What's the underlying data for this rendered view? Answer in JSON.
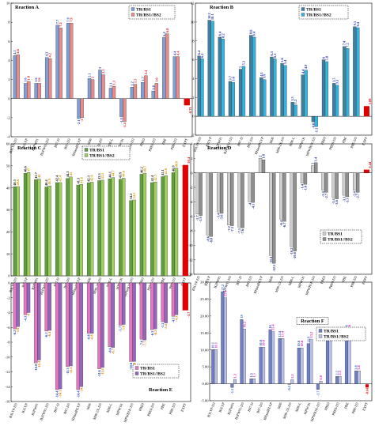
{
  "chart_data": [
    {
      "type": "bar",
      "title": "Reaction A",
      "categories": [
        "B3LYP-D3",
        "B3LYP",
        "B2PW91",
        "B2PW91-D3",
        "B97-D",
        "B97-D3",
        "BHandHLYP",
        "M06",
        "M06-2X-D3",
        "M06-L",
        "MPW1K",
        "MPWB1K-D3",
        "PBE0",
        "PBE0-D3",
        "PBE",
        "PBE-D3",
        "EXPT"
      ],
      "series": [
        {
          "name": "TR/BS1",
          "values": [
            4.5,
            1.6,
            1.6,
            4.3,
            7.7,
            7.9,
            -2.1,
            2.1,
            3.0,
            1.1,
            -1.9,
            1.2,
            1.7,
            0.8,
            6.4,
            4.4,
            null
          ]
        },
        {
          "name": "TR/BS1//BS2",
          "values": [
            4.6,
            1.8,
            1.6,
            4.2,
            7.4,
            7.9,
            -2.0,
            2.0,
            2.5,
            1.3,
            -2.4,
            1.5,
            2.4,
            1.6,
            6.8,
            4.4,
            null
          ]
        }
      ],
      "expt": -0.71,
      "expt_label": "-0.71",
      "legend_position": "top-right",
      "ylim": [
        -4,
        10
      ],
      "yticks": [
        -4,
        -2,
        0,
        2,
        4,
        6,
        8,
        10
      ],
      "colors": {
        "TR/BS1": "#7f9fd6",
        "TR/BS1//BS2": "#e88b8b",
        "labels1": "#2f46c8",
        "labels2": "#e02020",
        "expt": "#e00000"
      }
    },
    {
      "type": "bar",
      "title": "Reaction B",
      "categories": [
        "B3LYP-D3",
        "B3LYP",
        "B2PW91",
        "B2PW91-D3",
        "B97-D",
        "B97-D3",
        "BHandHLYP",
        "M06",
        "M06-2X-D3",
        "M06-L",
        "MPW1K",
        "MPWB1K-D3",
        "PBE0",
        "PBE0-D3",
        "PBE",
        "PBE-D3",
        "EXPT"
      ],
      "series": [
        {
          "name": "TR/BS1",
          "values": [
            6.4,
            10.2,
            8.4,
            3.7,
            5.0,
            8.6,
            4.1,
            6.3,
            5.6,
            1.5,
            4.4,
            -0.6,
            6.0,
            3.5,
            7.4,
            9.5,
            null
          ]
        },
        {
          "name": "TR/BS1//BS2",
          "values": [
            6.1,
            10.1,
            8.2,
            3.6,
            5.3,
            8.4,
            3.9,
            6.1,
            5.4,
            1.2,
            4.9,
            -1.1,
            5.8,
            3.3,
            7.2,
            9.4,
            null
          ]
        }
      ],
      "expt": 1.08,
      "expt_label": "1.08",
      "legend_position": "top-right",
      "ylim": [
        -2,
        12
      ],
      "yticks": [
        -2,
        0,
        2,
        4,
        6,
        8,
        10,
        12
      ],
      "colors": {
        "TR/BS1": "#3f7f9f",
        "TR/BS1//BS2": "#35b3de",
        "labels1": "#1f2fb0",
        "labels2": "#1f2fb0",
        "expt": "#e00000"
      }
    },
    {
      "type": "bar",
      "title": "Reaction C",
      "categories": [
        "B3LYP-D3",
        "B3LYP",
        "B2PW91",
        "B2PW91-D3",
        "B97-D",
        "B97-D3",
        "BHandHLYP",
        "M06",
        "M06-2X-D3",
        "M06-L",
        "MPW1K",
        "MPWB1K-D3",
        "PBE0",
        "PBE0-D3",
        "PBE",
        "PBE-D3",
        "EXPT"
      ],
      "series": [
        {
          "name": "TR/BS1",
          "values": [
            40.5,
            46.6,
            43.7,
            40.4,
            42.4,
            44.3,
            41.3,
            42.3,
            43.3,
            44.1,
            43.9,
            34.2,
            46.2,
            42.4,
            45.1,
            46.9,
            null
          ]
        },
        {
          "name": "TR/BS1//BS2",
          "values": [
            40.6,
            47.0,
            44.0,
            40.9,
            42.4,
            45.0,
            41.6,
            42.6,
            43.5,
            44.7,
            44.4,
            34.5,
            46.7,
            42.7,
            45.6,
            48.9,
            null
          ]
        }
      ],
      "expt": 50.4,
      "expt_label": "50.4",
      "legend_position": "top-center",
      "ylim": [
        0,
        60
      ],
      "yticks": [
        0,
        10,
        20,
        30,
        40,
        50,
        60
      ],
      "colors": {
        "TR/BS1": "#5f9f3f",
        "TR/BS1//BS2": "#9fcf5f",
        "labels1": "#1f1f1f",
        "labels2": "#d49b00",
        "expt": "#e00000"
      }
    },
    {
      "type": "bar",
      "title": "Reaction D",
      "categories": [
        "B3LYP-D3",
        "B3LYP",
        "B2PW91",
        "B2PW91-D3",
        "B97-D",
        "B97-D3",
        "BHandHLYP",
        "M06",
        "M06-2X-D3",
        "M06-L",
        "MPW1K",
        "MPWB1K-D3",
        "PBE0",
        "PBE0-D3",
        "PBE",
        "PBE-D3",
        "EXPT"
      ],
      "series": [
        {
          "name": "TR/BS1",
          "values": [
            -5.7,
            -8.6,
            -5.4,
            -7.2,
            -7.5,
            -4.0,
            2.0,
            -11.4,
            -6.4,
            -10.2,
            -1.4,
            1.0,
            -2.4,
            -3.4,
            -3.1,
            -2.4,
            null
          ]
        },
        {
          "name": "TR/BS1//BS2",
          "values": [
            -5.9,
            -8.8,
            -5.6,
            -7.3,
            -7.6,
            -4.1,
            1.8,
            -12.5,
            -6.7,
            -10.8,
            -1.6,
            1.4,
            -2.7,
            -3.6,
            -3.3,
            -2.7,
            null
          ]
        }
      ],
      "expt": 0.44,
      "expt_label": "0.44",
      "legend_position": "bottom-right",
      "ylim": [
        -14,
        4
      ],
      "yticks": [
        -14,
        -12,
        -10,
        -8,
        -6,
        -4,
        -2,
        0,
        2,
        4
      ],
      "colors": {
        "TR/BS1": "#cfcfcf",
        "TR/BS1//BS2": "#8f8f8f",
        "labels1": "#1f2f8f",
        "labels2": "#1f2f8f",
        "expt": "#e00000"
      }
    },
    {
      "type": "bar",
      "title": "Reaction E",
      "categories": [
        "B3LYP-D3",
        "B3LYP",
        "B2PW91",
        "B2PW91-D3",
        "B97-D",
        "B97-D3",
        "BHandHLYP",
        "M06",
        "M06-2X-D3",
        "M06-L",
        "MPW1K",
        "MPWB1K-D3",
        "PBE0",
        "PBE0-D3",
        "PBE",
        "PBE-D3",
        "EXPT"
      ],
      "series": [
        {
          "name": "TR/BS1",
          "values": [
            -6.2,
            -4.3,
            -10.8,
            -6.5,
            -14.4,
            -11.3,
            -14.4,
            -6.8,
            -11.6,
            -8.6,
            -5.7,
            -10.6,
            -7.6,
            -6.3,
            -5.2,
            -4.5,
            null
          ]
        },
        {
          "name": "TR/BS1//BS2",
          "values": [
            -5.9,
            -4.0,
            -10.4,
            -6.4,
            -14.3,
            -11.2,
            -14.0,
            -6.8,
            -11.4,
            -8.7,
            -5.6,
            -10.6,
            -7.7,
            -6.2,
            -5.4,
            -4.3,
            null
          ]
        }
      ],
      "expt": -3.7,
      "expt_label": "-3.7",
      "legend_position": "bottom-right",
      "ylim": [
        -16,
        0
      ],
      "yticks": [
        -16,
        -14,
        -12,
        -10,
        -8,
        -6,
        -4,
        -2,
        0
      ],
      "colors": {
        "TR/BS1": "#e377c2",
        "TR/BS1//BS2": "#9467bd",
        "labels1": "#1f3fbf",
        "labels2": "#e08000",
        "expt": "#e00000"
      }
    },
    {
      "type": "bar",
      "title": "Reaction F",
      "categories": [
        "B3LYP-D3",
        "B3LYP",
        "B2PW91",
        "B2PW91-D3",
        "B97-D",
        "B97-D3",
        "BHandHLYP",
        "M06",
        "M06-2X-D3",
        "M06-L",
        "MPW1K",
        "MPWB1K-D3",
        "PBE0",
        "PBE0-D3",
        "PBE",
        "PBE-D3",
        "EXPT"
      ],
      "series": [
        {
          "name": "TR/BS1",
          "values": [
            10.1,
            27.2,
            -1.1,
            19.0,
            1.5,
            10.8,
            16.0,
            13.4,
            -0.2,
            10.6,
            11.9,
            -1.7,
            13.0,
            2.2,
            16.0,
            3.8,
            null
          ]
        },
        {
          "name": "TR/BS1//BS2",
          "values": [
            10.1,
            25.4,
            1.3,
            16.2,
            1.5,
            10.8,
            15.4,
            13.4,
            1.2,
            10.6,
            13.2,
            0.8,
            13.0,
            2.2,
            16.0,
            3.8,
            null
          ]
        }
      ],
      "expt": -0.61,
      "expt_label": "-0.61",
      "legend_position": "center-right",
      "ylim": [
        -5,
        30
      ],
      "yticks": [
        -5,
        0,
        5,
        10,
        15,
        20,
        25,
        30
      ],
      "colors": {
        "TR/BS1": "#6f7fc8",
        "TR/BS1//BS2": "#b8c0e6",
        "labels1": "#2f5fcf",
        "labels2": "#e020b0",
        "expt": "#e00000"
      }
    }
  ]
}
